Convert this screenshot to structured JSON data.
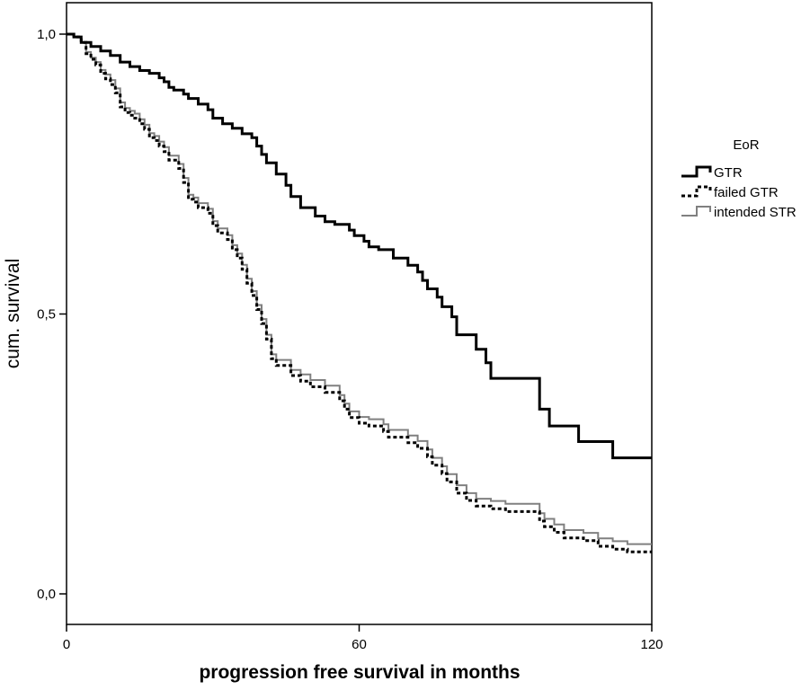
{
  "chart_data": {
    "type": "line",
    "subtype": "kaplan-meier-step",
    "xlabel": "progression free survival in months",
    "ylabel": "cum. survival",
    "xlim": [
      0,
      120
    ],
    "ylim": [
      0,
      1
    ],
    "x_ticks": [
      {
        "value": 0,
        "label": "0"
      },
      {
        "value": 60,
        "label": "60"
      },
      {
        "value": 120,
        "label": "120"
      }
    ],
    "y_ticks": [
      {
        "value": 0,
        "label": "0,0"
      },
      {
        "value": 0.5,
        "label": "0,5"
      },
      {
        "value": 1,
        "label": "1,0"
      }
    ],
    "legend": {
      "title": "EoR",
      "position": "right"
    },
    "series": [
      {
        "name": "GTR",
        "color": "#000000",
        "style": "solid-thick",
        "points": [
          [
            0,
            1.0
          ],
          [
            1.5,
            0.995
          ],
          [
            3,
            0.985
          ],
          [
            5,
            0.978
          ],
          [
            7,
            0.97
          ],
          [
            9,
            0.962
          ],
          [
            11,
            0.95
          ],
          [
            13,
            0.942
          ],
          [
            15,
            0.935
          ],
          [
            17,
            0.93
          ],
          [
            19,
            0.922
          ],
          [
            20,
            0.915
          ],
          [
            21,
            0.905
          ],
          [
            22,
            0.9
          ],
          [
            24,
            0.893
          ],
          [
            25,
            0.885
          ],
          [
            27,
            0.875
          ],
          [
            29,
            0.865
          ],
          [
            30,
            0.85
          ],
          [
            32,
            0.84
          ],
          [
            34,
            0.832
          ],
          [
            36,
            0.822
          ],
          [
            38,
            0.815
          ],
          [
            39,
            0.8
          ],
          [
            40,
            0.785
          ],
          [
            41,
            0.77
          ],
          [
            43,
            0.75
          ],
          [
            45,
            0.73
          ],
          [
            46,
            0.71
          ],
          [
            48,
            0.69
          ],
          [
            51,
            0.675
          ],
          [
            53,
            0.665
          ],
          [
            55,
            0.66
          ],
          [
            58,
            0.65
          ],
          [
            59,
            0.64
          ],
          [
            61,
            0.63
          ],
          [
            62,
            0.62
          ],
          [
            64,
            0.615
          ],
          [
            67,
            0.6
          ],
          [
            70,
            0.587
          ],
          [
            72,
            0.575
          ],
          [
            73,
            0.56
          ],
          [
            74,
            0.545
          ],
          [
            76,
            0.53
          ],
          [
            77,
            0.513
          ],
          [
            79,
            0.495
          ],
          [
            80,
            0.463
          ],
          [
            84,
            0.437
          ],
          [
            86,
            0.413
          ],
          [
            87,
            0.385
          ],
          [
            97,
            0.33
          ],
          [
            99,
            0.3
          ],
          [
            105,
            0.272
          ],
          [
            112,
            0.243
          ],
          [
            120,
            0.243
          ]
        ]
      },
      {
        "name": "failed GTR",
        "color": "#000000",
        "style": "dashed",
        "points": [
          [
            0,
            1.0
          ],
          [
            1.5,
            0.995
          ],
          [
            3,
            0.985
          ],
          [
            4,
            0.965
          ],
          [
            5,
            0.955
          ],
          [
            6,
            0.945
          ],
          [
            7,
            0.93
          ],
          [
            8,
            0.92
          ],
          [
            9,
            0.91
          ],
          [
            10,
            0.895
          ],
          [
            11,
            0.87
          ],
          [
            12,
            0.86
          ],
          [
            13,
            0.855
          ],
          [
            14,
            0.85
          ],
          [
            15,
            0.84
          ],
          [
            16,
            0.83
          ],
          [
            17,
            0.815
          ],
          [
            18,
            0.81
          ],
          [
            19,
            0.8
          ],
          [
            20,
            0.79
          ],
          [
            21,
            0.775
          ],
          [
            23,
            0.76
          ],
          [
            24,
            0.735
          ],
          [
            25,
            0.705
          ],
          [
            26,
            0.7
          ],
          [
            27,
            0.69
          ],
          [
            29,
            0.68
          ],
          [
            30,
            0.658
          ],
          [
            31,
            0.645
          ],
          [
            33,
            0.633
          ],
          [
            34,
            0.615
          ],
          [
            35,
            0.6
          ],
          [
            36,
            0.58
          ],
          [
            37,
            0.555
          ],
          [
            38,
            0.533
          ],
          [
            39,
            0.508
          ],
          [
            40,
            0.483
          ],
          [
            41,
            0.455
          ],
          [
            42,
            0.42
          ],
          [
            43,
            0.408
          ],
          [
            46,
            0.39
          ],
          [
            48,
            0.38
          ],
          [
            50,
            0.37
          ],
          [
            53,
            0.36
          ],
          [
            56,
            0.345
          ],
          [
            57,
            0.33
          ],
          [
            58,
            0.315
          ],
          [
            60,
            0.305
          ],
          [
            62,
            0.3
          ],
          [
            65,
            0.29
          ],
          [
            66,
            0.28
          ],
          [
            70,
            0.27
          ],
          [
            72,
            0.26
          ],
          [
            74,
            0.245
          ],
          [
            75,
            0.23
          ],
          [
            77,
            0.215
          ],
          [
            78,
            0.2
          ],
          [
            80,
            0.18
          ],
          [
            82,
            0.167
          ],
          [
            84,
            0.157
          ],
          [
            87,
            0.152
          ],
          [
            90,
            0.147
          ],
          [
            97,
            0.13
          ],
          [
            98,
            0.12
          ],
          [
            100,
            0.11
          ],
          [
            102,
            0.1
          ],
          [
            106,
            0.095
          ],
          [
            109,
            0.085
          ],
          [
            112,
            0.08
          ],
          [
            115,
            0.075
          ],
          [
            120,
            0.075
          ]
        ]
      },
      {
        "name": "intended STR",
        "color": "#808080",
        "style": "solid-thin",
        "points": [
          [
            0,
            1.0
          ],
          [
            1.5,
            0.995
          ],
          [
            3,
            0.985
          ],
          [
            4,
            0.968
          ],
          [
            5,
            0.958
          ],
          [
            6,
            0.95
          ],
          [
            7,
            0.936
          ],
          [
            8,
            0.928
          ],
          [
            9,
            0.918
          ],
          [
            10,
            0.903
          ],
          [
            11,
            0.878
          ],
          [
            12,
            0.868
          ],
          [
            13,
            0.863
          ],
          [
            14,
            0.858
          ],
          [
            15,
            0.848
          ],
          [
            16,
            0.838
          ],
          [
            17,
            0.823
          ],
          [
            18,
            0.818
          ],
          [
            19,
            0.808
          ],
          [
            20,
            0.798
          ],
          [
            21,
            0.783
          ],
          [
            23,
            0.768
          ],
          [
            24,
            0.743
          ],
          [
            25,
            0.713
          ],
          [
            26,
            0.708
          ],
          [
            27,
            0.698
          ],
          [
            29,
            0.688
          ],
          [
            30,
            0.666
          ],
          [
            31,
            0.653
          ],
          [
            33,
            0.641
          ],
          [
            34,
            0.623
          ],
          [
            35,
            0.608
          ],
          [
            36,
            0.588
          ],
          [
            37,
            0.563
          ],
          [
            38,
            0.541
          ],
          [
            39,
            0.516
          ],
          [
            40,
            0.491
          ],
          [
            41,
            0.463
          ],
          [
            42,
            0.428
          ],
          [
            43,
            0.418
          ],
          [
            46,
            0.4
          ],
          [
            48,
            0.392
          ],
          [
            50,
            0.382
          ],
          [
            53,
            0.372
          ],
          [
            56,
            0.355
          ],
          [
            57,
            0.34
          ],
          [
            58,
            0.326
          ],
          [
            60,
            0.316
          ],
          [
            62,
            0.312
          ],
          [
            65,
            0.303
          ],
          [
            66,
            0.293
          ],
          [
            70,
            0.283
          ],
          [
            72,
            0.273
          ],
          [
            74,
            0.258
          ],
          [
            75,
            0.243
          ],
          [
            77,
            0.228
          ],
          [
            78,
            0.214
          ],
          [
            80,
            0.194
          ],
          [
            82,
            0.18
          ],
          [
            84,
            0.17
          ],
          [
            87,
            0.166
          ],
          [
            90,
            0.161
          ],
          [
            97,
            0.144
          ],
          [
            98,
            0.134
          ],
          [
            100,
            0.124
          ],
          [
            102,
            0.114
          ],
          [
            106,
            0.109
          ],
          [
            109,
            0.099
          ],
          [
            112,
            0.094
          ],
          [
            115,
            0.089
          ],
          [
            120,
            0.089
          ]
        ]
      }
    ]
  }
}
